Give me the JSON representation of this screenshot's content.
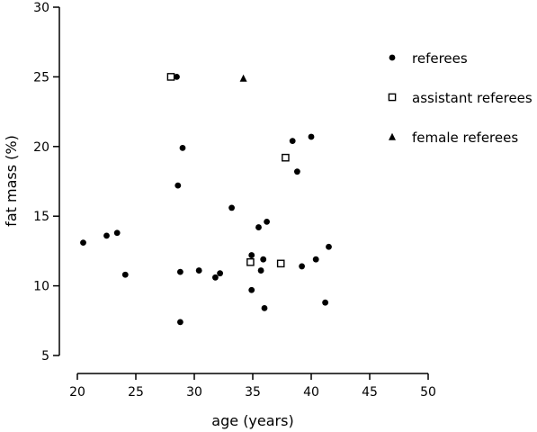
{
  "chart_data": {
    "type": "scatter",
    "title": "",
    "xlabel": "age (years)",
    "ylabel": "fat mass  (%)",
    "xlim": [
      20,
      50
    ],
    "ylim": [
      5,
      30
    ],
    "xticks": [
      "20",
      "25",
      "30",
      "35",
      "40",
      "45",
      "50"
    ],
    "yticks": [
      "5",
      "10",
      "15",
      "20",
      "25",
      "30"
    ],
    "grid": false,
    "legend_position": "top-right",
    "series": [
      {
        "name": "referees",
        "marker": "circle-filled",
        "color": "#000000",
        "points": [
          {
            "x": 20.5,
            "y": 13.1
          },
          {
            "x": 22.5,
            "y": 13.6
          },
          {
            "x": 23.4,
            "y": 13.8
          },
          {
            "x": 24.1,
            "y": 10.8
          },
          {
            "x": 28.5,
            "y": 25.0
          },
          {
            "x": 28.6,
            "y": 17.2
          },
          {
            "x": 28.8,
            "y": 11.0
          },
          {
            "x": 28.8,
            "y": 7.4
          },
          {
            "x": 29.0,
            "y": 19.9
          },
          {
            "x": 30.4,
            "y": 11.1
          },
          {
            "x": 31.8,
            "y": 10.6
          },
          {
            "x": 32.2,
            "y": 10.9
          },
          {
            "x": 33.2,
            "y": 15.6
          },
          {
            "x": 34.9,
            "y": 12.2
          },
          {
            "x": 34.9,
            "y": 9.7
          },
          {
            "x": 35.5,
            "y": 14.2
          },
          {
            "x": 35.7,
            "y": 11.1
          },
          {
            "x": 35.9,
            "y": 11.9
          },
          {
            "x": 36.0,
            "y": 8.4
          },
          {
            "x": 36.2,
            "y": 14.6
          },
          {
            "x": 38.4,
            "y": 20.4
          },
          {
            "x": 38.8,
            "y": 18.2
          },
          {
            "x": 39.2,
            "y": 11.4
          },
          {
            "x": 40.0,
            "y": 20.7
          },
          {
            "x": 40.4,
            "y": 11.9
          },
          {
            "x": 41.2,
            "y": 8.8
          },
          {
            "x": 41.5,
            "y": 12.8
          }
        ]
      },
      {
        "name": "assistant referees",
        "marker": "square-open",
        "color": "#000000",
        "points": [
          {
            "x": 28.0,
            "y": 25.0
          },
          {
            "x": 34.8,
            "y": 11.7
          },
          {
            "x": 37.4,
            "y": 11.6
          },
          {
            "x": 37.8,
            "y": 19.2
          }
        ]
      },
      {
        "name": "female referees",
        "marker": "triangle-filled",
        "color": "#000000",
        "points": [
          {
            "x": 34.2,
            "y": 24.9
          }
        ]
      }
    ]
  }
}
